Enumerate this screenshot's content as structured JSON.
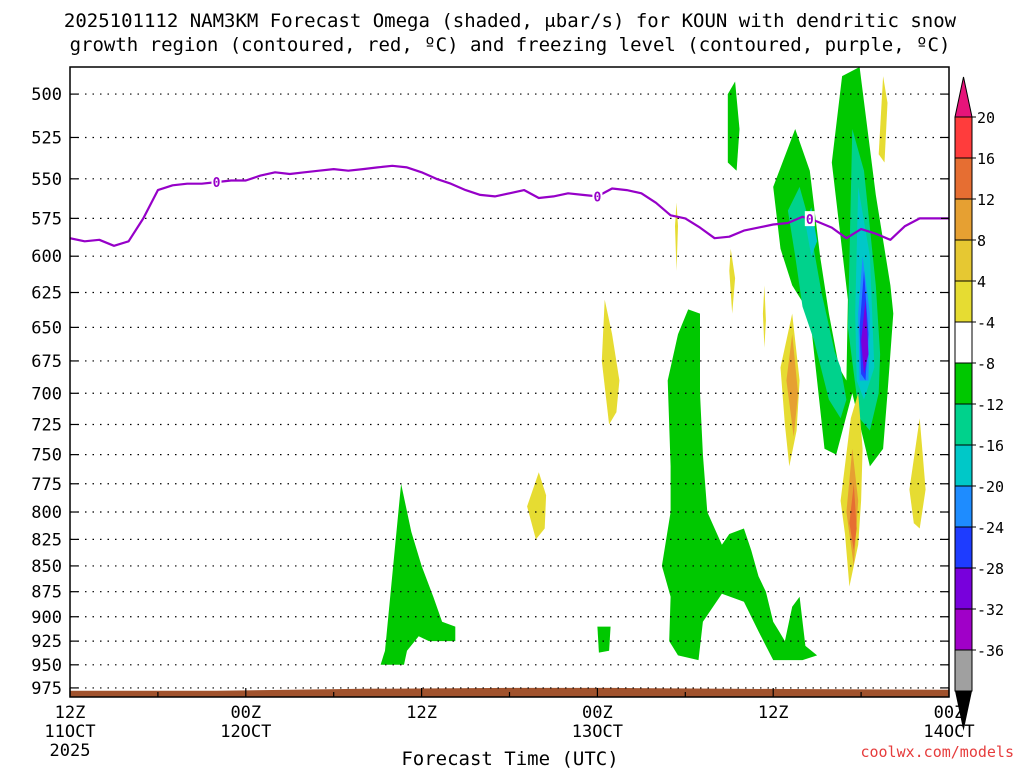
{
  "title": {
    "line1": "2025101112 NAM3KM Forecast Omega (shaded, μbar/s) for KOUN with dendritic snow",
    "line2": "growth region (contoured, red, ºC) and freezing level (contoured, purple, ºC)"
  },
  "credit": "coolwx.com/models",
  "colors": {
    "green": "#00c800",
    "teal": "#00d28c",
    "cyan": "#00c8c8",
    "blue": "#1e8cff",
    "darkblue": "#1e3cff",
    "purple": "#7800dc",
    "yellow": "#e6dc32",
    "orange": "#e6a032",
    "red_orange": "#e66e32",
    "ground": "#a0522d",
    "freezing_line": "#9600c8"
  },
  "chart_data": {
    "type": "heatmap",
    "title": "2025101112 NAM3KM Forecast Omega (shaded, μbar/s) for KOUN with dendritic snow growth region (contoured, red, ºC) and freezing level (contoured, purple, ºC)",
    "xlabel": "Forecast Time (UTC)",
    "ylabel": "",
    "x_range_hours": [
      0,
      60
    ],
    "y_range_hpa": [
      485,
      985
    ],
    "y_scale": "log-pressure",
    "x_ticks": [
      {
        "h": 0,
        "label": "12Z",
        "sub": "11OCT",
        "sub2": "2025"
      },
      {
        "h": 12,
        "label": "00Z",
        "sub": "12OCT",
        "sub2": ""
      },
      {
        "h": 24,
        "label": "12Z",
        "sub": "",
        "sub2": ""
      },
      {
        "h": 36,
        "label": "00Z",
        "sub": "13OCT",
        "sub2": ""
      },
      {
        "h": 48,
        "label": "12Z",
        "sub": "",
        "sub2": ""
      },
      {
        "h": 60,
        "label": "00Z",
        "sub": "14OCT",
        "sub2": ""
      }
    ],
    "y_ticks": [
      500,
      525,
      550,
      575,
      600,
      625,
      650,
      675,
      700,
      725,
      750,
      775,
      800,
      825,
      850,
      875,
      900,
      925,
      950,
      975
    ],
    "colorbar": {
      "labels": [
        "20",
        "16",
        "12",
        "8",
        "4",
        "-4",
        "-8",
        "-12",
        "-16",
        "-20",
        "-24",
        "-28",
        "-32",
        "-36"
      ],
      "bins": [
        {
          "color": "#ff3c3c"
        },
        {
          "color": "#e66e32"
        },
        {
          "color": "#e6a032"
        },
        {
          "color": "#e6c832"
        },
        {
          "color": "#e6dc32"
        },
        {
          "color": "#ffffff"
        },
        {
          "color": "#00c800"
        },
        {
          "color": "#00d28c"
        },
        {
          "color": "#00c8c8"
        },
        {
          "color": "#1e8cff"
        },
        {
          "color": "#1e3cff"
        },
        {
          "color": "#7800dc"
        },
        {
          "color": "#a000c8"
        },
        {
          "color": "#a0a0a0"
        }
      ],
      "top_arrow_color": "#e6147a",
      "bottom_arrow_color": "#000000"
    },
    "freezing_level": {
      "label": "0",
      "label_at_hours": [
        10,
        36,
        50.5
      ],
      "points": [
        [
          0,
          588
        ],
        [
          1,
          590
        ],
        [
          2,
          589
        ],
        [
          3,
          593
        ],
        [
          4,
          590
        ],
        [
          5,
          575
        ],
        [
          6,
          557
        ],
        [
          7,
          554
        ],
        [
          8,
          553
        ],
        [
          9,
          553
        ],
        [
          10,
          552
        ],
        [
          11,
          551
        ],
        [
          12,
          551
        ],
        [
          13,
          548
        ],
        [
          14,
          546
        ],
        [
          15,
          547
        ],
        [
          16,
          546
        ],
        [
          17,
          545
        ],
        [
          18,
          544
        ],
        [
          19,
          545
        ],
        [
          20,
          544
        ],
        [
          21,
          543
        ],
        [
          22,
          542
        ],
        [
          23,
          543
        ],
        [
          24,
          546
        ],
        [
          25,
          550
        ],
        [
          26,
          553
        ],
        [
          27,
          557
        ],
        [
          28,
          560
        ],
        [
          29,
          561
        ],
        [
          30,
          559
        ],
        [
          31,
          557
        ],
        [
          32,
          562
        ],
        [
          33,
          561
        ],
        [
          34,
          559
        ],
        [
          35,
          560
        ],
        [
          36,
          561
        ],
        [
          37,
          556
        ],
        [
          38,
          557
        ],
        [
          39,
          559
        ],
        [
          40,
          565
        ],
        [
          41,
          573
        ],
        [
          42,
          575
        ],
        [
          43,
          581
        ],
        [
          44,
          588
        ],
        [
          45,
          587
        ],
        [
          46,
          583
        ],
        [
          47,
          581
        ],
        [
          48,
          579
        ],
        [
          49,
          578
        ],
        [
          50,
          574
        ],
        [
          51,
          577
        ],
        [
          52,
          581
        ],
        [
          53,
          588
        ],
        [
          54,
          582
        ],
        [
          55,
          585
        ],
        [
          56,
          589
        ],
        [
          57,
          580
        ],
        [
          58,
          575
        ],
        [
          59,
          575
        ],
        [
          60,
          575
        ]
      ]
    },
    "surface_pressure_hpa": [
      [
        0,
        978
      ],
      [
        10,
        978
      ],
      [
        20,
        976
      ],
      [
        30,
        975
      ],
      [
        37,
        975
      ],
      [
        45,
        976
      ],
      [
        60,
        977
      ]
    ],
    "omega_regions": [
      {
        "value": -6,
        "polygon": [
          [
            21.5,
            935
          ],
          [
            22.6,
            775
          ],
          [
            23.3,
            818
          ],
          [
            24.0,
            850
          ],
          [
            24.8,
            880
          ],
          [
            25.4,
            905
          ],
          [
            26.3,
            910
          ],
          [
            26.3,
            925
          ],
          [
            24.5,
            925
          ],
          [
            23.8,
            920
          ],
          [
            23.0,
            935
          ],
          [
            22.8,
            950
          ],
          [
            21.2,
            950
          ],
          [
            21.4,
            940
          ]
        ]
      },
      {
        "value": -6,
        "polygon": [
          [
            36.0,
            910
          ],
          [
            36.9,
            910
          ],
          [
            36.8,
            935
          ],
          [
            36.1,
            937
          ]
        ]
      },
      {
        "value": -6,
        "polygon": [
          [
            40.9,
            925
          ],
          [
            41.0,
            880
          ],
          [
            40.4,
            850
          ],
          [
            41.0,
            800
          ],
          [
            41.0,
            760
          ],
          [
            40.8,
            690
          ],
          [
            41.5,
            655
          ],
          [
            42.2,
            637
          ],
          [
            43.0,
            640
          ],
          [
            43.0,
            700
          ],
          [
            43.2,
            750
          ],
          [
            43.5,
            800
          ],
          [
            44.5,
            830
          ],
          [
            45.0,
            820
          ],
          [
            46.0,
            815
          ],
          [
            46.5,
            835
          ],
          [
            47.0,
            860
          ],
          [
            47.5,
            875
          ],
          [
            48.0,
            905
          ],
          [
            48.4,
            915
          ],
          [
            48.8,
            925
          ],
          [
            49.3,
            890
          ],
          [
            49.8,
            880
          ],
          [
            50.2,
            930
          ],
          [
            51.0,
            940
          ],
          [
            50.0,
            945
          ],
          [
            48.0,
            945
          ],
          [
            47.0,
            915
          ],
          [
            46.0,
            885
          ],
          [
            44.5,
            877
          ],
          [
            43.2,
            905
          ],
          [
            42.9,
            945
          ],
          [
            41.5,
            940
          ]
        ]
      },
      {
        "value": -6,
        "polygon": [
          [
            44.9,
            500
          ],
          [
            45.4,
            493
          ],
          [
            45.7,
            520
          ],
          [
            45.5,
            545
          ],
          [
            44.9,
            540
          ]
        ]
      },
      {
        "value": -6,
        "polygon": [
          [
            48.5,
            595
          ],
          [
            48.0,
            555
          ],
          [
            49.5,
            520
          ],
          [
            50.5,
            545
          ],
          [
            51.2,
            600
          ],
          [
            51.8,
            640
          ],
          [
            52.5,
            680
          ],
          [
            53.0,
            690
          ],
          [
            53.1,
            630
          ],
          [
            52.0,
            540
          ],
          [
            52.7,
            490
          ],
          [
            53.9,
            485
          ],
          [
            55.0,
            560
          ],
          [
            56.0,
            620
          ],
          [
            56.2,
            640
          ],
          [
            55.8,
            700
          ],
          [
            55.5,
            745
          ],
          [
            54.6,
            760
          ],
          [
            53.4,
            700
          ],
          [
            52.3,
            750
          ],
          [
            51.5,
            745
          ],
          [
            50.5,
            640
          ],
          [
            49.3,
            620
          ]
        ]
      },
      {
        "value": -10,
        "polygon": [
          [
            49.5,
            600
          ],
          [
            49.0,
            570
          ],
          [
            49.8,
            555
          ],
          [
            50.4,
            575
          ],
          [
            51.3,
            625
          ],
          [
            52.2,
            668
          ],
          [
            52.6,
            680
          ],
          [
            53.0,
            705
          ],
          [
            52.6,
            720
          ],
          [
            51.8,
            705
          ],
          [
            50.8,
            660
          ],
          [
            50.0,
            635
          ]
        ]
      },
      {
        "value": -10,
        "polygon": [
          [
            53.1,
            650
          ],
          [
            53.4,
            520
          ],
          [
            54.2,
            545
          ],
          [
            55.0,
            620
          ],
          [
            55.3,
            670
          ],
          [
            55.2,
            700
          ],
          [
            54.6,
            730
          ],
          [
            53.9,
            720
          ]
        ]
      },
      {
        "value": -14,
        "polygon": [
          [
            50.2,
            578
          ],
          [
            50.6,
            568
          ],
          [
            51.0,
            590
          ],
          [
            50.6,
            600
          ]
        ]
      },
      {
        "value": -14,
        "polygon": [
          [
            53.6,
            640
          ],
          [
            53.8,
            555
          ],
          [
            54.6,
            600
          ],
          [
            54.9,
            680
          ],
          [
            54.2,
            705
          ],
          [
            53.7,
            690
          ]
        ]
      },
      {
        "value": -18,
        "polygon": [
          [
            53.8,
            640
          ],
          [
            54.1,
            600
          ],
          [
            54.6,
            640
          ],
          [
            54.5,
            690
          ],
          [
            53.9,
            690
          ]
        ]
      },
      {
        "value": -22,
        "polygon": [
          [
            53.9,
            650
          ],
          [
            54.2,
            610
          ],
          [
            54.5,
            655
          ],
          [
            54.3,
            690
          ],
          [
            54.0,
            685
          ]
        ]
      },
      {
        "value": -26,
        "polygon": [
          [
            54.0,
            660
          ],
          [
            54.3,
            630
          ],
          [
            54.5,
            670
          ],
          [
            54.2,
            685
          ]
        ]
      },
      {
        "value": 6,
        "polygon": [
          [
            41.3,
            580
          ],
          [
            41.4,
            565
          ],
          [
            41.5,
            580
          ],
          [
            41.4,
            610
          ]
        ]
      },
      {
        "value": 6,
        "polygon": [
          [
            36.3,
            675
          ],
          [
            36.5,
            630
          ],
          [
            37.0,
            655
          ],
          [
            37.5,
            690
          ],
          [
            37.3,
            715
          ],
          [
            36.8,
            725
          ]
        ]
      },
      {
        "value": 6,
        "polygon": [
          [
            31.2,
            795
          ],
          [
            32.0,
            765
          ],
          [
            32.5,
            785
          ],
          [
            32.4,
            815
          ],
          [
            31.8,
            825
          ]
        ]
      },
      {
        "value": 6,
        "polygon": [
          [
            45.0,
            610
          ],
          [
            45.1,
            595
          ],
          [
            45.4,
            615
          ],
          [
            45.2,
            640
          ]
        ]
      },
      {
        "value": 6,
        "polygon": [
          [
            47.3,
            640
          ],
          [
            47.4,
            620
          ],
          [
            47.5,
            645
          ],
          [
            47.4,
            665
          ]
        ]
      },
      {
        "value": 6,
        "polygon": [
          [
            48.5,
            680
          ],
          [
            49.3,
            640
          ],
          [
            49.8,
            690
          ],
          [
            49.6,
            730
          ],
          [
            49.1,
            760
          ],
          [
            48.8,
            725
          ]
        ]
      },
      {
        "value": 6,
        "polygon": [
          [
            52.6,
            790
          ],
          [
            53.3,
            720
          ],
          [
            53.8,
            700
          ],
          [
            54.1,
            745
          ],
          [
            54.0,
            790
          ],
          [
            53.8,
            830
          ],
          [
            53.2,
            870
          ],
          [
            52.9,
            820
          ]
        ]
      },
      {
        "value": 6,
        "polygon": [
          [
            55.2,
            535
          ],
          [
            55.5,
            490
          ],
          [
            55.8,
            505
          ],
          [
            55.6,
            540
          ]
        ]
      },
      {
        "value": 6,
        "polygon": [
          [
            57.3,
            780
          ],
          [
            58.0,
            720
          ],
          [
            58.4,
            780
          ],
          [
            58.0,
            815
          ],
          [
            57.6,
            810
          ]
        ]
      },
      {
        "value": 10,
        "polygon": [
          [
            48.9,
            690
          ],
          [
            49.3,
            655
          ],
          [
            49.7,
            700
          ],
          [
            49.4,
            735
          ]
        ]
      },
      {
        "value": 10,
        "polygon": [
          [
            53.0,
            800
          ],
          [
            53.4,
            745
          ],
          [
            53.8,
            790
          ],
          [
            53.5,
            850
          ]
        ]
      },
      {
        "value": 14,
        "polygon": [
          [
            53.2,
            810
          ],
          [
            53.5,
            775
          ],
          [
            53.7,
            815
          ],
          [
            53.5,
            835
          ]
        ]
      }
    ]
  }
}
